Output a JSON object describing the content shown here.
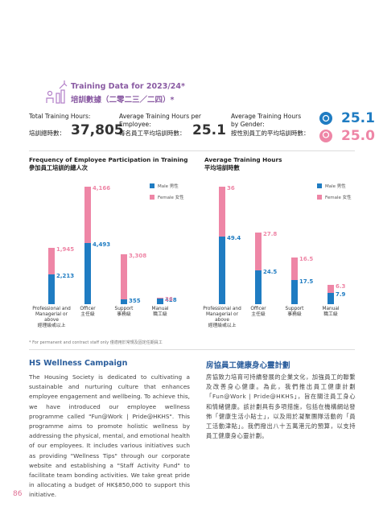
{
  "header": {
    "title": "Training Data for 2023/24*",
    "title_zh": "培訓數據（二零二三／二四）*"
  },
  "stats": [
    {
      "label": "Total Training Hours:",
      "label_zh": "培訓總時數：",
      "value": "37,805"
    },
    {
      "label": "Average Training Hours per Employee:",
      "label_zh": "每名員工平均培訓時數：",
      "value": "25.1"
    },
    {
      "label": "Average Training Hours by Gender:",
      "label_zh": "按性別員工的平均培訓時數：",
      "male": "25.1",
      "female": "25.0"
    }
  ],
  "chart_data": [
    {
      "type": "bar",
      "stacked": true,
      "title": "Frequency of Employee Participation in Training",
      "subtitle": "參加員工培訓的總人次",
      "categories": [
        "Professional and Managerial or above",
        "Officer",
        "Support",
        "Manual"
      ],
      "categories_zh": [
        "經理級或以上",
        "主任級",
        "事務級",
        "職工級"
      ],
      "series": [
        {
          "name": "Male 男性",
          "color": "#1f7cc2",
          "values": [
            2213,
            4493,
            355,
            428
          ],
          "value_labels": [
            "2,213",
            "4,493",
            "355",
            "428"
          ]
        },
        {
          "name": "Female 女性",
          "color": "#ee86a6",
          "values": [
            1945,
            4166,
            3308,
            26
          ],
          "value_labels": [
            "1,945",
            "4,166",
            "3,308",
            "26"
          ]
        }
      ]
    },
    {
      "type": "bar",
      "stacked": true,
      "title": "Average Training Hours",
      "subtitle": "平均培訓時數",
      "categories": [
        "Professional and Managerial or above",
        "Officer",
        "Support",
        "Manual"
      ],
      "categories_zh": [
        "經理級或以上",
        "主任級",
        "事務級",
        "職工級"
      ],
      "series": [
        {
          "name": "Male 男性",
          "color": "#1f7cc2",
          "values": [
            49.4,
            24.5,
            17.5,
            7.9
          ]
        },
        {
          "name": "Female 女性",
          "color": "#ee86a6",
          "values": [
            36,
            27.8,
            16.5,
            6.3
          ]
        }
      ]
    }
  ],
  "footnote": "* For permanent and contract staff only 僅適用於常規及固定任期員工",
  "section": {
    "heading": "HS Wellness Campaign",
    "heading_zh": "房協員工健康身心靈計劃",
    "body": "The Housing Society is dedicated to cultivating a sustainable and nurturing culture that enhances employee engagement and wellbeing. To achieve this, we have introduced our employee wellness programme called \"Fun@Work | Pride@HKHS\". This programme aims to promote holistic wellness by addressing the physical, mental, and emotional health of our employees. It includes various initiatives such as providing \"Wellness Tips\" through our corporate website and establishing a \"Staff Activity Fund\" to facilitate team bonding activities. We take great pride in allocating a budget of HK$850,000 to support this initiative.",
    "body_zh": "房協致力培育可持續發展的企業文化，加強員工的聯繫及改善身心健康。為此，我們推出員工健康計劃「Fun@Work | Pride@HKHS」，旨在關注員工身心和情緒健康。該計劃具有多項措施，包括在機構網站發佈「健康生活小貼士」，以及用於凝聚團隊活動的「員工活動津貼」。我們撥出八十五萬港元的預算，以支持員工健康身心靈計劃。"
  },
  "page_number": "86"
}
